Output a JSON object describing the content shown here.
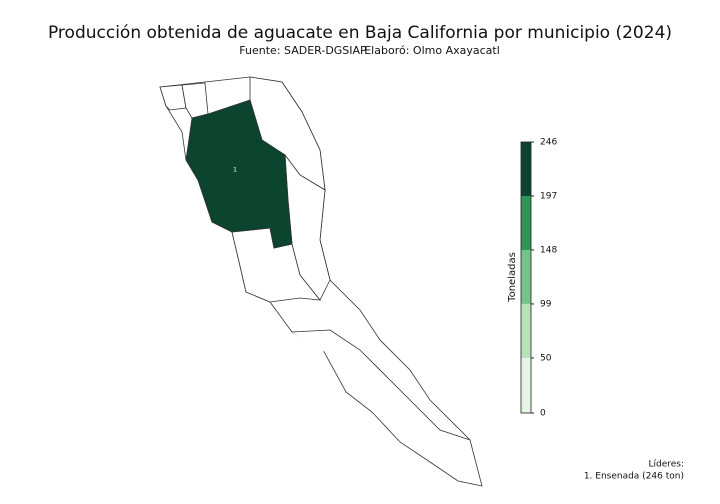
{
  "title": "Producción obtenida de aguacate en Baja California por municipio (2024)",
  "source": "Fuente: SADER-DGSIAP",
  "author": "Elaboró: Olmo Axayacatl",
  "map": {
    "regions": [
      {
        "label": "1",
        "value": 246
      }
    ]
  },
  "colorbar": {
    "label": "Toneladas",
    "lim": [
      0,
      246
    ],
    "ticks": [
      0,
      50,
      99,
      148,
      197,
      246
    ],
    "colors": [
      "#e5f5e3",
      "#b6e2b8",
      "#74c488",
      "#2f9558",
      "#0b4530"
    ]
  },
  "leaders": {
    "title": "Líderes:",
    "items": [
      "1. Ensenada (246 ton)"
    ]
  }
}
